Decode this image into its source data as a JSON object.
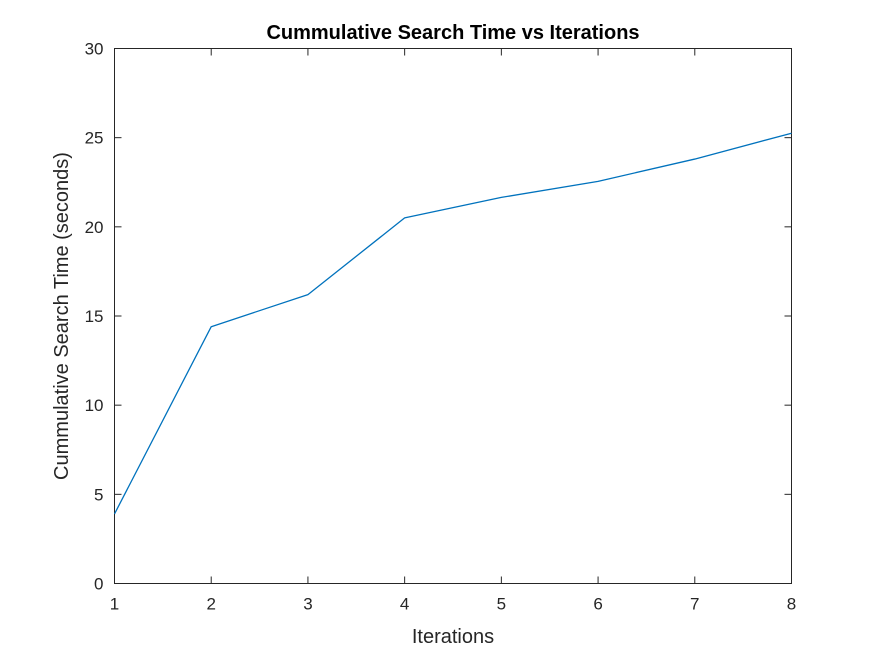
{
  "chart_data": {
    "type": "line",
    "title": "Cummulative Search Time vs Iterations",
    "xlabel": "Iterations",
    "ylabel": "Cummulative Search Time (seconds)",
    "xlim": [
      1,
      8
    ],
    "ylim": [
      0,
      30
    ],
    "xticks": [
      "1",
      "2",
      "3",
      "4",
      "5",
      "6",
      "7",
      "8"
    ],
    "yticks": [
      "0",
      "5",
      "10",
      "15",
      "20",
      "25",
      "30"
    ],
    "grid": false,
    "legend": "none",
    "series": [
      {
        "color": "#0072bd",
        "x": [
          1,
          2,
          3,
          4,
          5,
          6,
          7,
          8
        ],
        "y": [
          3.9,
          14.4,
          16.2,
          20.5,
          21.65,
          22.55,
          23.8,
          25.25
        ]
      }
    ]
  }
}
